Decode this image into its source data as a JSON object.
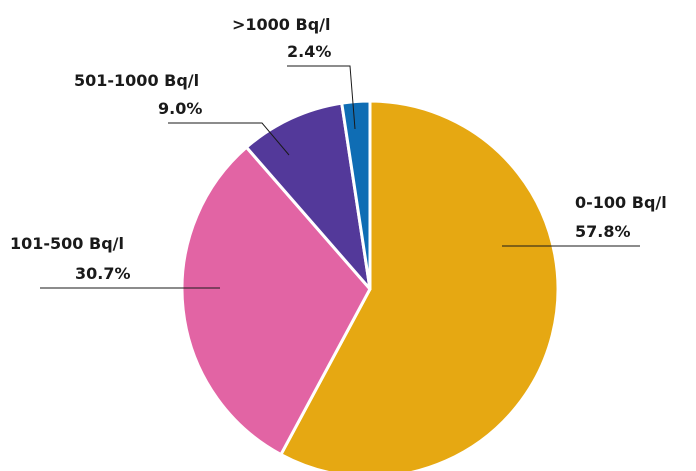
{
  "chart_data": {
    "type": "pie",
    "title": "",
    "slices": [
      {
        "label": "0-100 Bq/l",
        "value": 57.8,
        "value_label": "57.8%",
        "color": "#E6A812"
      },
      {
        "label": "101-500 Bq/l",
        "value": 30.7,
        "value_label": "30.7%",
        "color": "#E264A4"
      },
      {
        "label": "501-1000 Bq/l",
        "value": 9.0,
        "value_label": "9.0%",
        "color": "#53399A"
      },
      {
        "label": ">1000 Bq/l",
        "value": 2.4,
        "value_label": "2.4%",
        "color": "#0F6DB4"
      }
    ],
    "start_angle": "12 o'clock",
    "direction": "clockwise",
    "legend": "none (labels with leader lines)",
    "grid": false
  }
}
